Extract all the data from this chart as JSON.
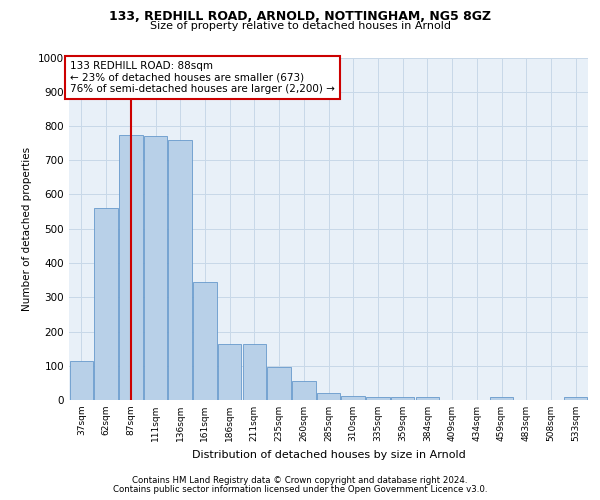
{
  "title1": "133, REDHILL ROAD, ARNOLD, NOTTINGHAM, NG5 8GZ",
  "title2": "Size of property relative to detached houses in Arnold",
  "xlabel": "Distribution of detached houses by size in Arnold",
  "ylabel": "Number of detached properties",
  "categories": [
    "37sqm",
    "62sqm",
    "87sqm",
    "111sqm",
    "136sqm",
    "161sqm",
    "186sqm",
    "211sqm",
    "235sqm",
    "260sqm",
    "285sqm",
    "310sqm",
    "335sqm",
    "359sqm",
    "384sqm",
    "409sqm",
    "434sqm",
    "459sqm",
    "483sqm",
    "508sqm",
    "533sqm"
  ],
  "values": [
    115,
    560,
    775,
    770,
    760,
    345,
    163,
    163,
    97,
    56,
    20,
    13,
    10,
    10,
    10,
    0,
    0,
    10,
    0,
    0,
    10
  ],
  "bar_color": "#b8d0e8",
  "bar_edge_color": "#6699cc",
  "vline_x": 2,
  "vline_color": "#cc0000",
  "annotation_text": "133 REDHILL ROAD: 88sqm\n← 23% of detached houses are smaller (673)\n76% of semi-detached houses are larger (2,200) →",
  "annotation_box_color": "#ffffff",
  "annotation_box_edge": "#cc0000",
  "ylim": [
    0,
    1000
  ],
  "yticks": [
    0,
    100,
    200,
    300,
    400,
    500,
    600,
    700,
    800,
    900,
    1000
  ],
  "grid_color": "#c8d8e8",
  "background_color": "#e8f0f8",
  "footer1": "Contains HM Land Registry data © Crown copyright and database right 2024.",
  "footer2": "Contains public sector information licensed under the Open Government Licence v3.0."
}
